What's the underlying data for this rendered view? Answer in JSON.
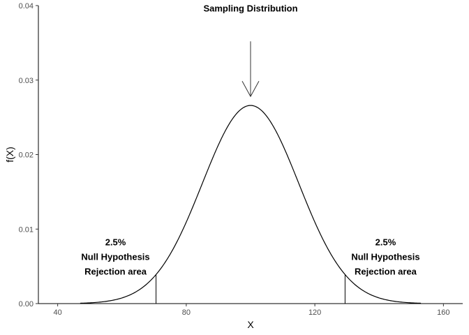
{
  "chart_data": {
    "type": "line",
    "title": "",
    "xlabel": "X",
    "ylabel": "f(X)",
    "xlim": [
      34,
      166
    ],
    "ylim": [
      0,
      0.04
    ],
    "x_ticks": [
      40,
      80,
      120,
      160
    ],
    "x_tick_labels": [
      "40",
      "80",
      "120",
      "160"
    ],
    "y_ticks": [
      0,
      0.01,
      0.02,
      0.03,
      0.04
    ],
    "y_tick_labels": [
      "0.00",
      "0.01",
      "0.02",
      "0.03",
      "0.04"
    ],
    "grid": false,
    "series": [
      {
        "distribution": "normal",
        "mean": 100,
        "sd": 15,
        "x_range": [
          47,
          153
        ],
        "color": "#000000"
      }
    ],
    "critical_lines": [
      {
        "x": 70.6,
        "y_top": 0.0039
      },
      {
        "x": 129.4,
        "y_top": 0.0039
      }
    ],
    "annotations": [
      {
        "lines": [
          "Sampling Distribution"
        ],
        "x": 100,
        "y": 0.0392
      },
      {
        "lines": [
          "2.5%",
          "Null Hypothesis",
          "Rejection area"
        ],
        "x": 58,
        "y": 0.0078
      },
      {
        "lines": [
          "2.5%",
          "Null Hypothesis",
          "Rejection area"
        ],
        "x": 142,
        "y": 0.0078
      }
    ],
    "arrow": {
      "x": 100,
      "y_from": 0.0352,
      "y_to": 0.0278,
      "color": "#333333"
    }
  }
}
